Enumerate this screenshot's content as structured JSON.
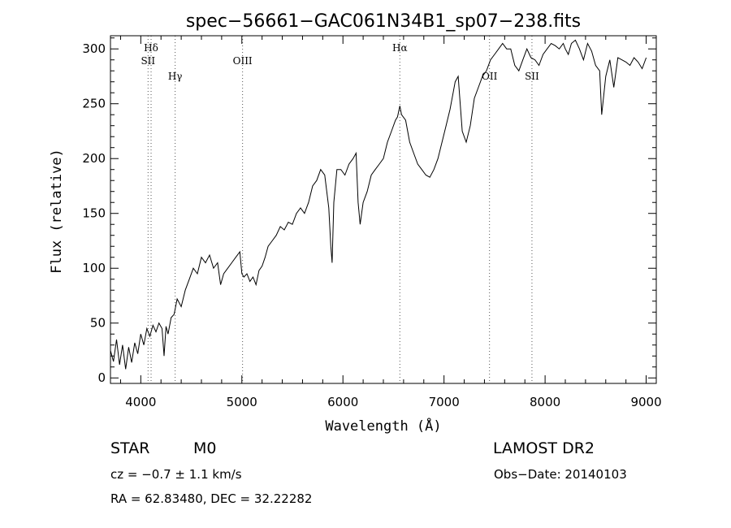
{
  "chart_data": {
    "type": "line",
    "title": "spec−56661−GAC061N34B1_sp07−238.fits",
    "xlabel": "Wavelength (Å)",
    "ylabel": "Flux (relative)",
    "xlim": [
      3700,
      9100
    ],
    "ylim": [
      -5,
      312
    ],
    "xticks": [
      4000,
      5000,
      6000,
      7000,
      8000,
      9000
    ],
    "yticks": [
      0,
      50,
      100,
      150,
      200,
      250,
      300
    ],
    "grid": false,
    "series": [
      {
        "x": [
          3700,
          3730,
          3760,
          3790,
          3820,
          3850,
          3880,
          3910,
          3940,
          3970,
          4000,
          4030,
          4060,
          4090,
          4120,
          4150,
          4180,
          4210,
          4230,
          4250,
          4270,
          4300,
          4330,
          4360,
          4400,
          4440,
          4480,
          4520,
          4560,
          4600,
          4640,
          4680,
          4720,
          4760,
          4790,
          4820,
          4860,
          4900,
          4940,
          4980,
          5000,
          5020,
          5050,
          5080,
          5110,
          5140,
          5170,
          5200,
          5230,
          5260,
          5300,
          5340,
          5380,
          5420,
          5460,
          5500,
          5540,
          5580,
          5620,
          5660,
          5700,
          5740,
          5780,
          5820,
          5860,
          5880,
          5893,
          5910,
          5940,
          5980,
          6020,
          6060,
          6100,
          6130,
          6150,
          6170,
          6200,
          6240,
          6280,
          6320,
          6360,
          6400,
          6440,
          6480,
          6520,
          6540,
          6563,
          6580,
          6620,
          6660,
          6700,
          6740,
          6780,
          6820,
          6860,
          6900,
          6940,
          6980,
          7020,
          7060,
          7090,
          7110,
          7140,
          7180,
          7220,
          7260,
          7300,
          7340,
          7380,
          7420,
          7460,
          7500,
          7540,
          7580,
          7620,
          7660,
          7700,
          7740,
          7780,
          7820,
          7860,
          7900,
          7940,
          7980,
          8020,
          8060,
          8100,
          8140,
          8180,
          8200,
          8230,
          8260,
          8300,
          8340,
          8380,
          8420,
          8460,
          8500,
          8540,
          8560,
          8600,
          8640,
          8680,
          8720,
          8760,
          8800,
          8840,
          8880,
          8920,
          8960,
          9000
        ],
        "y": [
          25,
          15,
          35,
          12,
          30,
          8,
          28,
          14,
          32,
          22,
          40,
          30,
          45,
          38,
          48,
          42,
          50,
          45,
          20,
          47,
          40,
          55,
          58,
          72,
          65,
          80,
          90,
          100,
          95,
          110,
          105,
          112,
          100,
          105,
          85,
          95,
          100,
          105,
          110,
          115,
          95,
          92,
          95,
          88,
          92,
          85,
          98,
          102,
          110,
          120,
          125,
          130,
          138,
          135,
          142,
          140,
          150,
          155,
          150,
          160,
          175,
          180,
          190,
          185,
          155,
          120,
          105,
          160,
          190,
          190,
          185,
          195,
          200,
          205,
          160,
          140,
          160,
          170,
          185,
          190,
          195,
          200,
          215,
          225,
          235,
          238,
          248,
          240,
          235,
          215,
          205,
          195,
          190,
          185,
          183,
          190,
          200,
          215,
          230,
          245,
          260,
          270,
          275,
          225,
          215,
          230,
          255,
          265,
          275,
          280,
          290,
          295,
          300,
          305,
          300,
          300,
          285,
          280,
          290,
          300,
          292,
          290,
          285,
          295,
          300,
          305,
          303,
          300,
          305,
          300,
          295,
          305,
          308,
          300,
          290,
          305,
          298,
          285,
          280,
          240,
          275,
          290,
          265,
          292,
          290,
          288,
          285,
          292,
          288,
          282,
          292
        ]
      }
    ],
    "annotations": [
      {
        "label": "Hδ",
        "x": 4102,
        "row": 0
      },
      {
        "label": "SII",
        "x": 4072,
        "row": 1
      },
      {
        "label": "Hγ",
        "x": 4340,
        "row": 2
      },
      {
        "label": "OIII",
        "x": 5007,
        "row": 1
      },
      {
        "label": "Hα",
        "x": 6563,
        "row": 0
      },
      {
        "label": "OII",
        "x": 7450,
        "row": 2
      },
      {
        "label": "SII",
        "x": 7870,
        "row": 2
      }
    ]
  },
  "info": {
    "object_class": "STAR",
    "subclass": "M0",
    "survey": "LAMOST DR2",
    "cz": "cz = −0.7 ± 1.1 km/s",
    "obs_date": "Obs−Date: 20140103",
    "coords": "RA =  62.83480, DEC =  32.22282"
  }
}
